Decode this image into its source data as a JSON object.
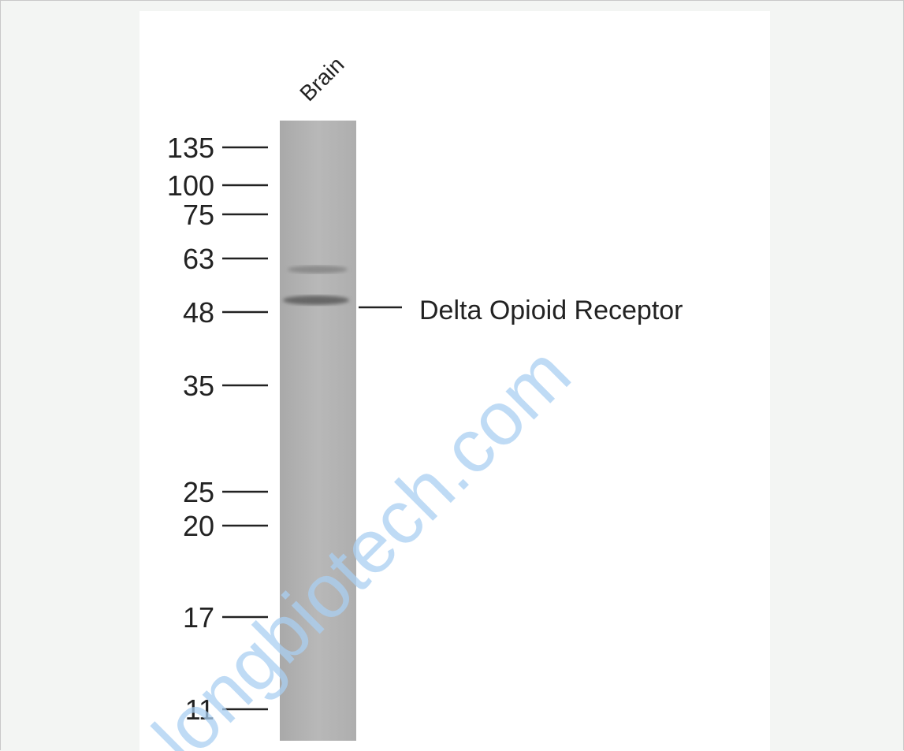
{
  "lane_label": "Brain",
  "markers": [
    "135",
    "100",
    "75",
    "63",
    "48",
    "35",
    "25",
    "20",
    "17",
    "11"
  ],
  "band_label": "Delta Opioid Receptor",
  "watermark": "longbiotech.com"
}
